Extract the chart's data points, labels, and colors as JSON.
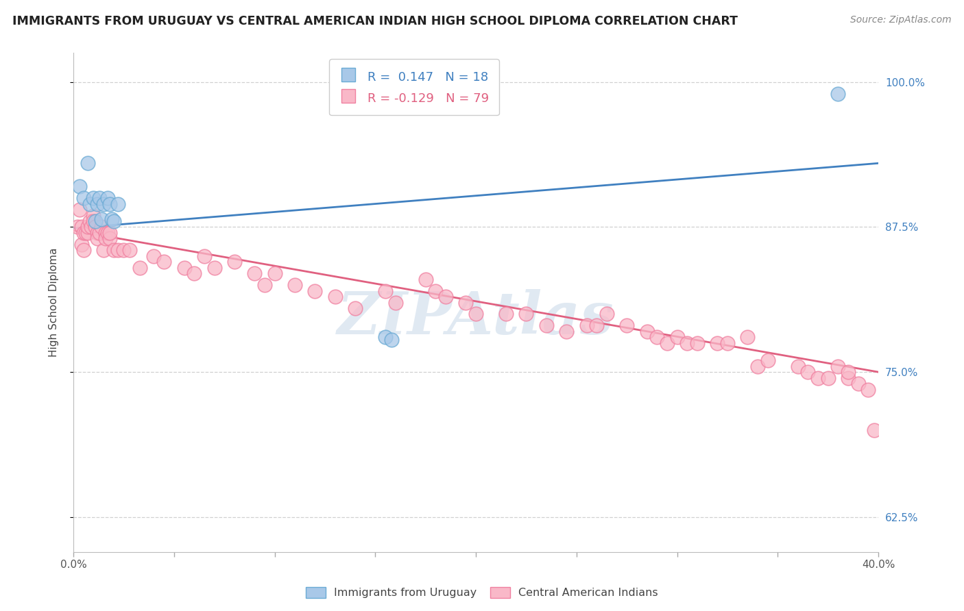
{
  "title": "IMMIGRANTS FROM URUGUAY VS CENTRAL AMERICAN INDIAN HIGH SCHOOL DIPLOMA CORRELATION CHART",
  "source": "Source: ZipAtlas.com",
  "ylabel": "High School Diploma",
  "xlim": [
    0.0,
    0.4
  ],
  "ylim": [
    0.595,
    1.025
  ],
  "yticks": [
    0.625,
    0.75,
    0.875,
    1.0
  ],
  "ytick_labels": [
    "62.5%",
    "75.0%",
    "87.5%",
    "100.0%"
  ],
  "xticks": [
    0.0,
    0.05,
    0.1,
    0.15,
    0.2,
    0.25,
    0.3,
    0.35,
    0.4
  ],
  "blue_R": 0.147,
  "blue_N": 18,
  "pink_R": -0.129,
  "pink_N": 79,
  "blue_color": "#a8c8e8",
  "blue_edge_color": "#6aaad4",
  "pink_color": "#f9b8c8",
  "pink_edge_color": "#f080a0",
  "blue_line_color": "#4080c0",
  "pink_line_color": "#e06080",
  "legend_label_blue": "Immigrants from Uruguay",
  "legend_label_pink": "Central American Indians",
  "watermark": "ZIPAtlas",
  "background_color": "#ffffff",
  "grid_color": "#d0d0d0",
  "blue_x": [
    0.003,
    0.005,
    0.007,
    0.008,
    0.01,
    0.011,
    0.012,
    0.013,
    0.014,
    0.015,
    0.017,
    0.018,
    0.019,
    0.02,
    0.022,
    0.155,
    0.158,
    0.38
  ],
  "blue_y": [
    0.91,
    0.9,
    0.93,
    0.895,
    0.9,
    0.88,
    0.895,
    0.9,
    0.882,
    0.895,
    0.9,
    0.895,
    0.882,
    0.88,
    0.895,
    0.78,
    0.778,
    0.99
  ],
  "pink_x": [
    0.002,
    0.003,
    0.004,
    0.004,
    0.005,
    0.005,
    0.006,
    0.007,
    0.007,
    0.008,
    0.009,
    0.01,
    0.01,
    0.011,
    0.012,
    0.012,
    0.013,
    0.014,
    0.015,
    0.016,
    0.016,
    0.017,
    0.018,
    0.018,
    0.02,
    0.022,
    0.025,
    0.028,
    0.033,
    0.04,
    0.045,
    0.055,
    0.06,
    0.065,
    0.07,
    0.08,
    0.09,
    0.095,
    0.1,
    0.11,
    0.12,
    0.13,
    0.14,
    0.155,
    0.16,
    0.175,
    0.18,
    0.185,
    0.195,
    0.2,
    0.215,
    0.225,
    0.235,
    0.245,
    0.255,
    0.26,
    0.265,
    0.275,
    0.285,
    0.29,
    0.295,
    0.3,
    0.305,
    0.31,
    0.32,
    0.325,
    0.335,
    0.34,
    0.345,
    0.36,
    0.365,
    0.37,
    0.375,
    0.38,
    0.385,
    0.385,
    0.39,
    0.395,
    0.398
  ],
  "pink_y": [
    0.875,
    0.89,
    0.875,
    0.86,
    0.87,
    0.855,
    0.87,
    0.87,
    0.875,
    0.88,
    0.875,
    0.885,
    0.88,
    0.875,
    0.87,
    0.865,
    0.87,
    0.875,
    0.855,
    0.87,
    0.865,
    0.87,
    0.865,
    0.87,
    0.855,
    0.855,
    0.855,
    0.855,
    0.84,
    0.85,
    0.845,
    0.84,
    0.835,
    0.85,
    0.84,
    0.845,
    0.835,
    0.825,
    0.835,
    0.825,
    0.82,
    0.815,
    0.805,
    0.82,
    0.81,
    0.83,
    0.82,
    0.815,
    0.81,
    0.8,
    0.8,
    0.8,
    0.79,
    0.785,
    0.79,
    0.79,
    0.8,
    0.79,
    0.785,
    0.78,
    0.775,
    0.78,
    0.775,
    0.775,
    0.775,
    0.775,
    0.78,
    0.755,
    0.76,
    0.755,
    0.75,
    0.745,
    0.745,
    0.755,
    0.745,
    0.75,
    0.74,
    0.735,
    0.7
  ],
  "blue_trend_x": [
    0.0,
    0.4
  ],
  "blue_trend_y": [
    0.874,
    0.93
  ],
  "pink_trend_x": [
    0.0,
    0.4
  ],
  "pink_trend_y": [
    0.872,
    0.75
  ]
}
